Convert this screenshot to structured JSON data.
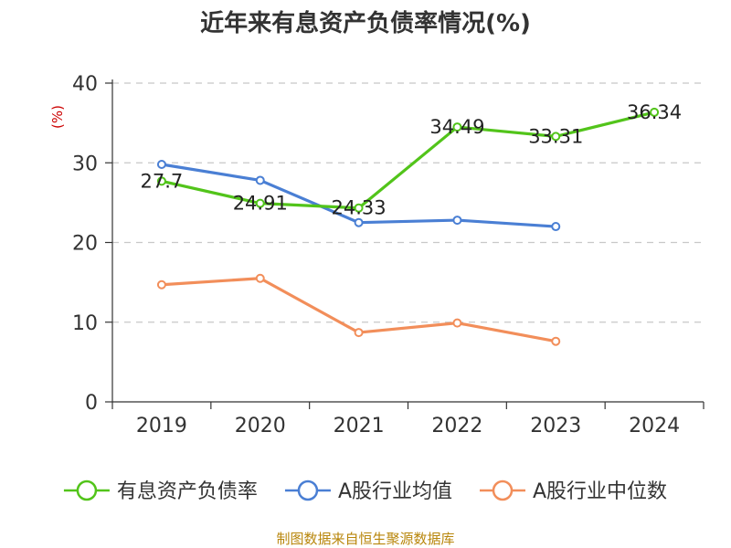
{
  "chart_data": {
    "type": "line",
    "title": "近年来有息资产负债率情况(%)",
    "ylabel": "(%)",
    "xlabel": "",
    "categories": [
      "2019",
      "2020",
      "2021",
      "2022",
      "2023",
      "2024"
    ],
    "ylim": [
      0,
      40
    ],
    "yticks": [
      0,
      10,
      20,
      30,
      40
    ],
    "grid": true,
    "legend_position": "bottom",
    "series": [
      {
        "name": "有息资产负债率",
        "color": "#52c41a",
        "values": [
          27.7,
          24.91,
          24.33,
          34.49,
          33.31,
          36.34
        ],
        "labels": [
          "27.7",
          "24.91",
          "24.33",
          "34.49",
          "33.31",
          "36.34"
        ],
        "show_labels": true
      },
      {
        "name": "A股行业均值",
        "color": "#4a7fd4",
        "values": [
          29.8,
          27.8,
          22.5,
          22.8,
          22.0,
          null
        ],
        "show_labels": false
      },
      {
        "name": "A股行业中位数",
        "color": "#f28e5a",
        "values": [
          14.7,
          15.5,
          8.7,
          9.9,
          7.6,
          null
        ],
        "show_labels": false
      }
    ]
  },
  "source": "制图数据来自恒生聚源数据库"
}
